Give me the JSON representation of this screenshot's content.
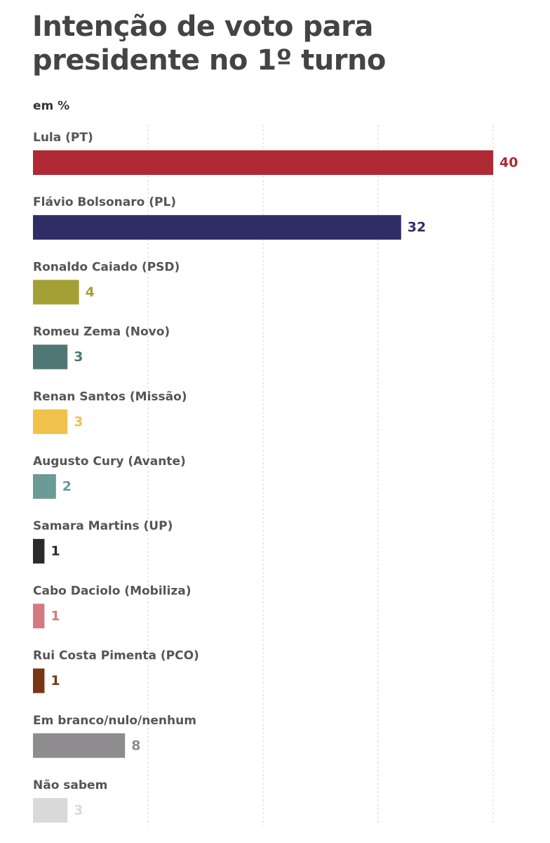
{
  "chart_data": {
    "type": "bar",
    "orientation": "horizontal",
    "title": "Intenção de voto para presidente no 1º turno",
    "subtitle": "em %",
    "categories": [
      "Lula (PT)",
      "Flávio Bolsonaro (PL)",
      "Ronaldo Caiado (PSD)",
      "Romeu Zema (Novo)",
      "Renan Santos (Missão)",
      "Augusto Cury (Avante)",
      "Samara Martins (UP)",
      "Cabo Daciolo (Mobiliza)",
      "Rui Costa Pimenta (PCO)",
      "Em branco/nulo/nenhum",
      "Não sabem"
    ],
    "values": [
      40,
      32,
      4,
      3,
      3,
      2,
      1,
      1,
      1,
      8,
      3
    ],
    "colors": [
      "#b02a35",
      "#2e2d66",
      "#a3a135",
      "#4e7775",
      "#f0c24b",
      "#6b9a97",
      "#2b2b2b",
      "#d27a80",
      "#7a3512",
      "#8e8c8e",
      "#d9d9d9"
    ],
    "xlim": [
      0,
      40
    ],
    "xticks": [
      10,
      20,
      30,
      40
    ],
    "grid": true
  }
}
